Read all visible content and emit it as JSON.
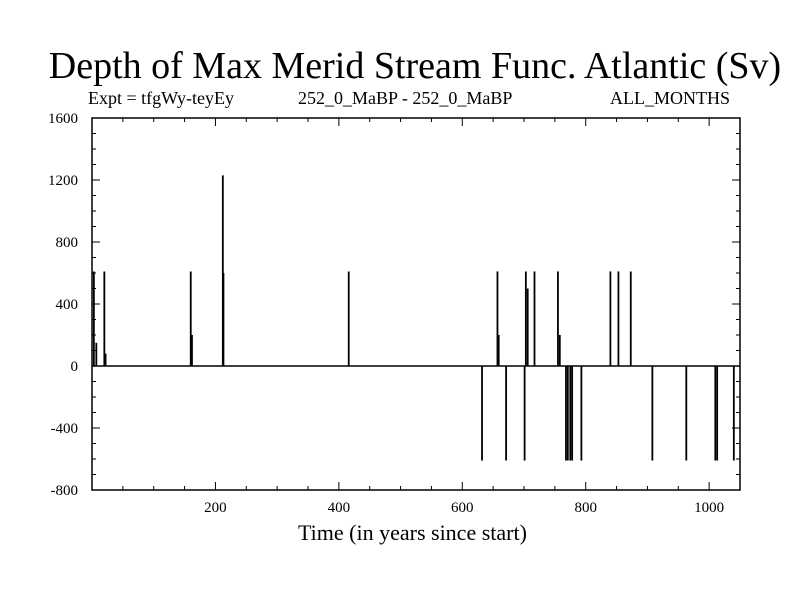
{
  "chart_data": {
    "type": "line",
    "title": "Depth of Max Merid Stream Func. Atlantic (Sv)",
    "subtitle_left": "Expt = tfgWy-teyEy",
    "subtitle_center": "252_0_MaBP - 252_0_MaBP",
    "subtitle_right": "ALL_MONTHS",
    "xlabel": "Time (in years since start)",
    "ylabel": "",
    "xlim": [
      0,
      1050
    ],
    "ylim": [
      -800,
      1600
    ],
    "xticks": [
      200,
      400,
      600,
      800,
      1000
    ],
    "yticks": [
      -800,
      -400,
      0,
      400,
      800,
      1200,
      1600
    ],
    "x_tick_labels": [
      "200",
      "400",
      "600",
      "800",
      "1000"
    ],
    "y_tick_labels": [
      "-800",
      "-400",
      "0",
      "400",
      "800",
      "1200",
      "1600"
    ],
    "baseline": 0,
    "spikes": [
      {
        "x": 3,
        "y": 610
      },
      {
        "x": 7,
        "y": 150
      },
      {
        "x": 20,
        "y": 610
      },
      {
        "x": 22,
        "y": 80
      },
      {
        "x": 160,
        "y": 610
      },
      {
        "x": 162,
        "y": 200
      },
      {
        "x": 212,
        "y": 1230
      },
      {
        "x": 213,
        "y": 600
      },
      {
        "x": 416,
        "y": 610
      },
      {
        "x": 632,
        "y": -610
      },
      {
        "x": 657,
        "y": 610
      },
      {
        "x": 659,
        "y": 200
      },
      {
        "x": 671,
        "y": -610
      },
      {
        "x": 701,
        "y": -610
      },
      {
        "x": 703,
        "y": 610
      },
      {
        "x": 706,
        "y": 500
      },
      {
        "x": 717,
        "y": 610
      },
      {
        "x": 755,
        "y": 610
      },
      {
        "x": 758,
        "y": 200
      },
      {
        "x": 768,
        "y": -610
      },
      {
        "x": 771,
        "y": -610
      },
      {
        "x": 775,
        "y": -610
      },
      {
        "x": 778,
        "y": -610
      },
      {
        "x": 793,
        "y": -610
      },
      {
        "x": 840,
        "y": 610
      },
      {
        "x": 853,
        "y": 610
      },
      {
        "x": 873,
        "y": 610
      },
      {
        "x": 908,
        "y": -610
      },
      {
        "x": 963,
        "y": -610
      },
      {
        "x": 1010,
        "y": -610
      },
      {
        "x": 1013,
        "y": -610
      },
      {
        "x": 1040,
        "y": -610
      }
    ]
  }
}
